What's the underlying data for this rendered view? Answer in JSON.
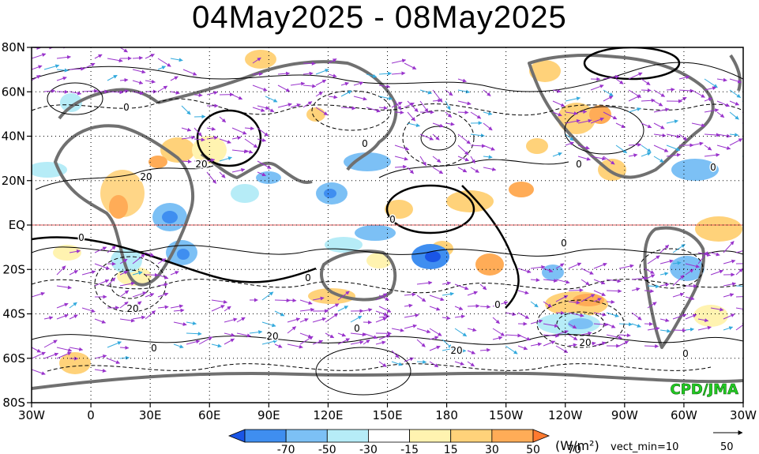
{
  "title": "04May2025 - 08May2025",
  "map": {
    "lon_ticks": [
      "30W",
      "0",
      "30E",
      "60E",
      "90E",
      "120E",
      "150E",
      "180",
      "150W",
      "120W",
      "90W",
      "60W",
      "30W"
    ],
    "lat_ticks": [
      "80N",
      "60N",
      "40N",
      "20N",
      "EQ",
      "20S",
      "40S",
      "60S",
      "80S"
    ],
    "equator_color": "#e05050",
    "land_color": "#707070",
    "vector_color": "#9933cc",
    "vector_strong_color": "#33aadd",
    "watermark": "CPD/JMA",
    "watermark_color": "#22cc22"
  },
  "legend": {
    "labels": [
      "-70",
      "-50",
      "-30",
      "-15",
      "15",
      "30",
      "50",
      "70"
    ],
    "colors": [
      "#1a55e6",
      "#3f8ef0",
      "#7cc0f5",
      "#b6ecf7",
      "#ffffff",
      "#fff3b0",
      "#ffd27a",
      "#ffac57",
      "#ff7a30"
    ],
    "units": "(W/m²)",
    "vect_min": "vect_min=10",
    "ref_value": "50"
  },
  "contour_labels": [
    "0",
    "0",
    "0",
    "0",
    "0",
    "0",
    "0",
    "0",
    "0",
    "0",
    "0",
    "0",
    "20",
    "20",
    "20",
    "20",
    "20",
    "20"
  ]
}
